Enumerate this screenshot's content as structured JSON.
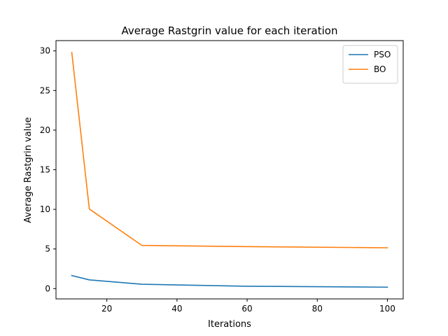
{
  "chart_data": {
    "type": "line",
    "title": "Average Rastgrin value for each iteration",
    "xlabel": "Iterations",
    "ylabel": "Average Rastgrin value",
    "x": [
      10,
      15,
      30,
      60,
      100
    ],
    "series": [
      {
        "name": "PSO",
        "color": "#1f77b4",
        "values": [
          1.65,
          1.1,
          0.55,
          0.3,
          0.18
        ]
      },
      {
        "name": "BO",
        "color": "#ff7f0e",
        "values": [
          29.8,
          10.05,
          5.45,
          5.3,
          5.15
        ]
      }
    ],
    "xlim": [
      5.5,
      104.5
    ],
    "ylim": [
      -1.3,
      31.3
    ],
    "xticks": [
      20,
      40,
      60,
      80,
      100
    ],
    "yticks": [
      0,
      5,
      10,
      15,
      20,
      25,
      30
    ],
    "grid": false,
    "legend_position": "top-right"
  }
}
